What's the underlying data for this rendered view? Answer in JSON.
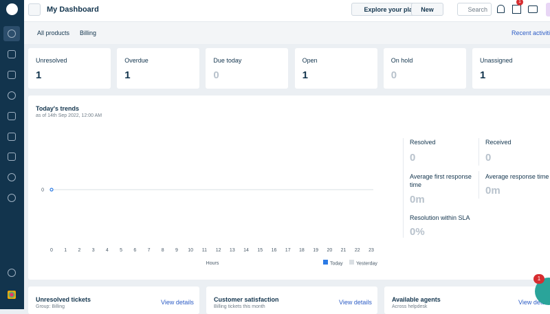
{
  "header": {
    "title": "My Dashboard",
    "explore": "Explore your plan",
    "new": "New",
    "search": "Search",
    "notification_count": "1"
  },
  "filters": {
    "products": "All products",
    "group": "Billing",
    "recent": "Recent activities"
  },
  "stats": [
    {
      "label": "Unresolved",
      "value": 1
    },
    {
      "label": "Overdue",
      "value": 1
    },
    {
      "label": "Due today",
      "value": 0
    },
    {
      "label": "Open",
      "value": 1
    },
    {
      "label": "On hold",
      "value": 0
    },
    {
      "label": "Unassigned",
      "value": 1
    }
  ],
  "trends": {
    "title": "Today's trends",
    "subtitle": "as of 14th Sep 2022, 12:00 AM",
    "chart": {
      "type": "line",
      "xlabel": "Hours",
      "x": [
        0,
        1,
        2,
        3,
        4,
        5,
        6,
        7,
        8,
        9,
        10,
        11,
        12,
        13,
        14,
        15,
        16,
        17,
        18,
        19,
        20,
        21,
        22,
        23
      ],
      "xlim": [
        0,
        23
      ],
      "ylim": [
        0,
        1
      ],
      "yticks": [
        0
      ],
      "series": [
        {
          "name": "Today",
          "color": "#2c7be5",
          "values": [
            0,
            null,
            null,
            null,
            null,
            null,
            null,
            null,
            null,
            null,
            null,
            null,
            null,
            null,
            null,
            null,
            null,
            null,
            null,
            null,
            null,
            null,
            null,
            null
          ]
        },
        {
          "name": "Yesterday",
          "color": "#dadfe3",
          "values": [
            null,
            null,
            null,
            null,
            null,
            null,
            null,
            null,
            null,
            null,
            null,
            null,
            null,
            null,
            null,
            null,
            null,
            null,
            null,
            null,
            null,
            null,
            null,
            null
          ]
        }
      ]
    },
    "metrics": [
      {
        "label": "Resolved",
        "value": "0"
      },
      {
        "label": "Received",
        "value": "0"
      },
      {
        "label": "Average first response time",
        "value": "0m"
      },
      {
        "label": "Average response time",
        "value": "0m"
      },
      {
        "label": "Resolution within SLA",
        "value": "0%"
      }
    ]
  },
  "widgets": [
    {
      "title": "Unresolved tickets",
      "subtitle": "Group: Billing",
      "link": "View details"
    },
    {
      "title": "Customer satisfaction",
      "subtitle": "Billing tickets this month",
      "link": "View details"
    },
    {
      "title": "Available agents",
      "subtitle": "Across helpdesk",
      "link": "View details"
    }
  ],
  "chat_badge": "1"
}
